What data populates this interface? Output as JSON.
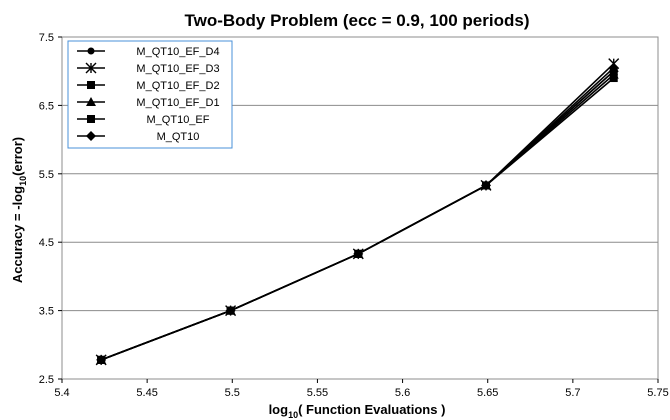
{
  "chart_data": {
    "type": "line",
    "title": "Two-Body Problem (ecc = 0.9, 100 periods)",
    "xlabel": {
      "main": "log",
      "sub": "10",
      "rest": "( Function Evaluations )"
    },
    "ylabel": {
      "main": "Accuracy = -log",
      "sub": "10",
      "rest": "(error)"
    },
    "xlim": [
      5.4,
      5.75
    ],
    "ylim": [
      2.5,
      7.5
    ],
    "x_ticks": [
      "5.4",
      "5.45",
      "5.5",
      "5.55",
      "5.6",
      "5.65",
      "5.7",
      "5.75"
    ],
    "y_ticks": [
      "2.5",
      "3.5",
      "4.5",
      "5.5",
      "6.5",
      "7.5"
    ],
    "grid": "horizontal",
    "legend_position": "top-left",
    "x": [
      5.423,
      5.499,
      5.574,
      5.649,
      5.724
    ],
    "series": [
      {
        "name": "M_QT10_EF_D4",
        "marker": "circle",
        "values": [
          2.78,
          3.5,
          4.33,
          5.33,
          7.05
        ]
      },
      {
        "name": "M_QT10_EF_D3",
        "marker": "star",
        "values": [
          2.78,
          3.5,
          4.33,
          5.33,
          7.11
        ]
      },
      {
        "name": "M_QT10_EF_D2",
        "marker": "square",
        "values": [
          2.78,
          3.5,
          4.33,
          5.33,
          7.0
        ]
      },
      {
        "name": "M_QT10_EF_D1",
        "marker": "triangle",
        "values": [
          2.78,
          3.5,
          4.33,
          5.33,
          6.95
        ]
      },
      {
        "name": "M_QT10_EF",
        "marker": "square",
        "values": [
          2.78,
          3.5,
          4.33,
          5.33,
          6.9
        ]
      },
      {
        "name": "M_QT10",
        "marker": "diamond",
        "values": [
          2.78,
          3.5,
          4.33,
          5.33,
          7.0
        ]
      }
    ],
    "colors": {
      "line": "#000000",
      "grid": "#8c8c8c",
      "plot_border": "#8c8c8c",
      "legend_border": "#4a90d9"
    }
  }
}
